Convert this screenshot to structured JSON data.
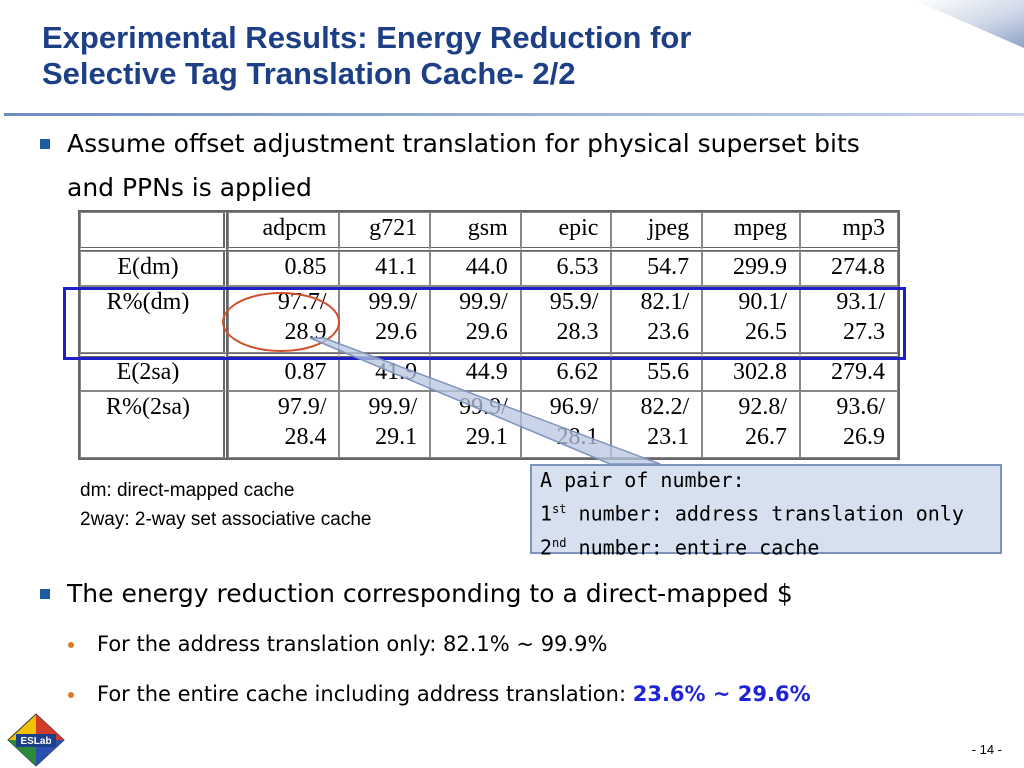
{
  "title": {
    "line1": "Experimental Results: Energy Reduction for",
    "line2": "Selective Tag Translation Cache- 2/2"
  },
  "bullet1": {
    "line1": "Assume offset adjustment translation for physical superset bits",
    "line2": "and PPNs is applied"
  },
  "table": {
    "columns": [
      "adpcm",
      "g721",
      "gsm",
      "epic",
      "jpeg",
      "mpeg",
      "mp3"
    ],
    "rows": [
      {
        "label": "E(dm)",
        "cells": [
          "0.85",
          "41.1",
          "44.0",
          "6.53",
          "54.7",
          "299.9",
          "274.8"
        ]
      },
      {
        "label": "R%(dm)",
        "cells": [
          "97.7/",
          "99.9/",
          "99.9/",
          "95.9/",
          "82.1/",
          "90.1/",
          "93.1/"
        ],
        "cells2": [
          "28.9",
          "29.6",
          "29.6",
          "28.3",
          "23.6",
          "26.5",
          "27.3"
        ]
      },
      {
        "label": "E(2sa)",
        "cells": [
          "0.87",
          "41.9",
          "44.9",
          "6.62",
          "55.6",
          "302.8",
          "279.4"
        ]
      },
      {
        "label": "R%(2sa)",
        "cells": [
          "97.9/",
          "99.9/",
          "99.9/",
          "96.9/",
          "82.2/",
          "92.8/",
          "93.6/"
        ],
        "cells2": [
          "28.4",
          "29.1",
          "29.1",
          "28.1",
          "23.1",
          "26.7",
          "26.9"
        ]
      }
    ]
  },
  "legend": {
    "line1": "dm: direct-mapped cache",
    "line2": "2way: 2-way set associative cache"
  },
  "callout": {
    "line1": "A pair of number:",
    "line2_num": "1",
    "line2_sup": "st",
    "line2_rest": " number: address translation only",
    "line3_num": "2",
    "line3_sup": "nd",
    "line3_rest": " number: entire cache"
  },
  "bullet2": "The energy reduction corresponding to a direct-mapped $",
  "sub1": "For the address translation only: 82.1% ~ 99.9%",
  "sub2": {
    "text": "For the entire cache including address translation: ",
    "highlight": "23.6% ~ 29.6%"
  },
  "logo_text": "ESLab",
  "page_number": "- 14 -",
  "colors": {
    "title": "#1c3f86",
    "highlight": "#1f24d6",
    "box": "#1f1fc8",
    "circle": "#d0502a",
    "callout_bg": "#d7e0ef"
  }
}
